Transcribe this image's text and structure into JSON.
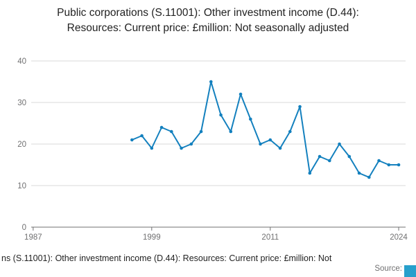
{
  "title": "Public corporations (S.11001): Other investment income (D.44): Resources: Current price: £million: Not seasonally adjusted",
  "footer": {
    "caption": "ns (S.11001): Other investment income (D.44): Resources: Current price: £million: Not",
    "source_label": "Source:"
  },
  "colors": {
    "line": "#1380be",
    "grid": "#d9d9d9",
    "axis": "#707071",
    "tick_text": "#707071",
    "title_text": "#222222",
    "logo": "#27a0cc"
  },
  "chart_data": {
    "type": "line",
    "title": "Public corporations (S.11001): Other investment income (D.44): Resources: Current price: £million: Not seasonally adjusted",
    "xlabel": "",
    "ylabel": "",
    "ylim": [
      0,
      40
    ],
    "xlim": [
      1986.8,
      2024.7
    ],
    "yticks": [
      0,
      10,
      20,
      30,
      40
    ],
    "xticks": [
      1987,
      1999,
      2011,
      2024
    ],
    "grid": true,
    "legend": "none",
    "line_color": "#1380be",
    "grid_color": "#d9d9d9",
    "axis_color": "#707071",
    "tick_color": "#707071",
    "series": [
      {
        "name": "Other investment income (D.44)",
        "x": [
          1997,
          1998,
          1999,
          2000,
          2001,
          2002,
          2003,
          2004,
          2005,
          2006,
          2007,
          2008,
          2009,
          2010,
          2011,
          2012,
          2013,
          2014,
          2015,
          2016,
          2017,
          2018,
          2019,
          2020,
          2021,
          2022,
          2023,
          2024
        ],
        "values": [
          21,
          22,
          19,
          24,
          23,
          19,
          20,
          23,
          35,
          27,
          23,
          32,
          26,
          20,
          21,
          19,
          23,
          29,
          13,
          17,
          16,
          20,
          17,
          13,
          12,
          16,
          15,
          15
        ]
      }
    ]
  }
}
